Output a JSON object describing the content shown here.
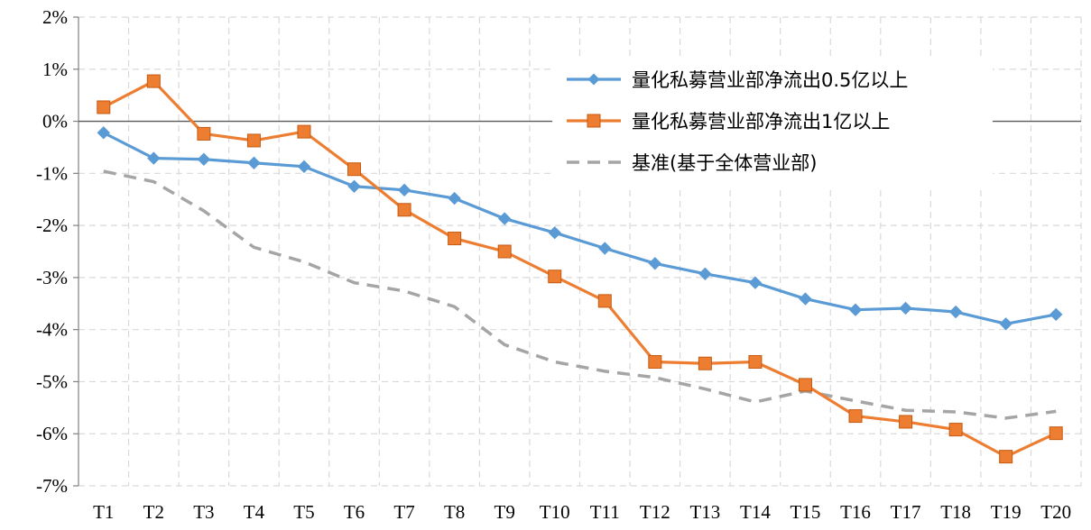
{
  "chart_data": {
    "type": "line",
    "title": "",
    "xlabel": "",
    "ylabel": "",
    "categories": [
      "T1",
      "T2",
      "T3",
      "T4",
      "T5",
      "T6",
      "T7",
      "T8",
      "T9",
      "T10",
      "T11",
      "T12",
      "T13",
      "T14",
      "T15",
      "T16",
      "T17",
      "T18",
      "T19",
      "T20"
    ],
    "y_ticks": [
      {
        "value": 2,
        "label": "2%"
      },
      {
        "value": 1,
        "label": "1%"
      },
      {
        "value": 0,
        "label": "0%"
      },
      {
        "value": -1,
        "label": "-1%"
      },
      {
        "value": -2,
        "label": "-2%"
      },
      {
        "value": -3,
        "label": "-3%"
      },
      {
        "value": -4,
        "label": "-4%"
      },
      {
        "value": -5,
        "label": "-5%"
      },
      {
        "value": -6,
        "label": "-6%"
      },
      {
        "value": -7,
        "label": "-7%"
      }
    ],
    "ylim": [
      -7,
      2
    ],
    "grid": "dashed",
    "legend_position": "top-right",
    "series": [
      {
        "name": "量化私募营业部净流出0.5亿以上",
        "color": "#5B9BD5",
        "marker": "diamond",
        "line_style": "solid",
        "values": [
          -0.22,
          -0.71,
          -0.73,
          -0.8,
          -0.87,
          -1.25,
          -1.32,
          -1.48,
          -1.87,
          -2.14,
          -2.44,
          -2.73,
          -2.93,
          -3.1,
          -3.41,
          -3.62,
          -3.59,
          -3.66,
          -3.89,
          -3.71
        ]
      },
      {
        "name": "量化私募营业部净流出1亿以上",
        "color": "#ED7D31",
        "marker": "square",
        "line_style": "solid",
        "values": [
          0.27,
          0.77,
          -0.24,
          -0.37,
          -0.2,
          -0.92,
          -1.7,
          -2.25,
          -2.5,
          -2.98,
          -3.45,
          -4.62,
          -4.65,
          -4.62,
          -5.06,
          -5.66,
          -5.77,
          -5.92,
          -6.44,
          -5.99
        ]
      },
      {
        "name": "基准(基于全体营业部)",
        "color": "#A5A5A5",
        "marker": "none",
        "line_style": "dashed",
        "values": [
          -0.96,
          -1.16,
          -1.72,
          -2.42,
          -2.7,
          -3.1,
          -3.26,
          -3.56,
          -4.29,
          -4.62,
          -4.8,
          -4.92,
          -5.14,
          -5.39,
          -5.18,
          -5.37,
          -5.55,
          -5.58,
          -5.7,
          -5.57
        ]
      }
    ]
  }
}
